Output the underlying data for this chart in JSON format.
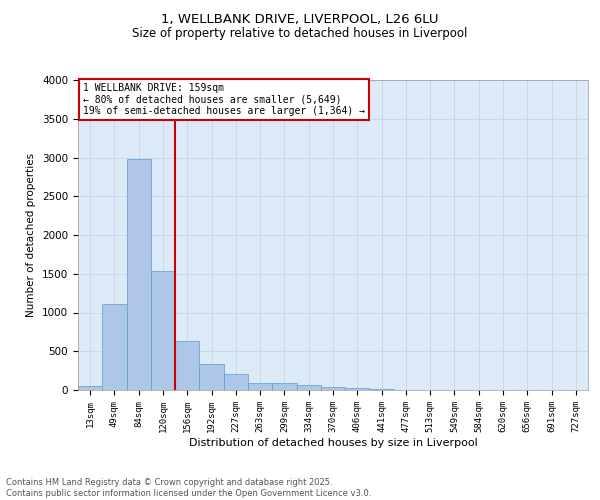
{
  "title_line1": "1, WELLBANK DRIVE, LIVERPOOL, L26 6LU",
  "title_line2": "Size of property relative to detached houses in Liverpool",
  "xlabel": "Distribution of detached houses by size in Liverpool",
  "ylabel": "Number of detached properties",
  "bar_labels": [
    "13sqm",
    "49sqm",
    "84sqm",
    "120sqm",
    "156sqm",
    "192sqm",
    "227sqm",
    "263sqm",
    "299sqm",
    "334sqm",
    "370sqm",
    "406sqm",
    "441sqm",
    "477sqm",
    "513sqm",
    "549sqm",
    "584sqm",
    "620sqm",
    "656sqm",
    "691sqm",
    "727sqm"
  ],
  "bar_values": [
    55,
    1110,
    2980,
    1530,
    635,
    340,
    205,
    95,
    90,
    60,
    45,
    25,
    10,
    2,
    0,
    0,
    0,
    0,
    0,
    0,
    0
  ],
  "bar_color": "#aec6e8",
  "bar_edge_color": "#5b9bd5",
  "vline_color": "#cc0000",
  "ylim": [
    0,
    4000
  ],
  "yticks": [
    0,
    500,
    1000,
    1500,
    2000,
    2500,
    3000,
    3500,
    4000
  ],
  "annotation_text": "1 WELLBANK DRIVE: 159sqm\n← 80% of detached houses are smaller (5,649)\n19% of semi-detached houses are larger (1,364) →",
  "annotation_box_color": "#cc0000",
  "grid_color": "#c8d8e8",
  "background_color": "#ddeaf7",
  "footer_line1": "Contains HM Land Registry data © Crown copyright and database right 2025.",
  "footer_line2": "Contains public sector information licensed under the Open Government Licence v3.0."
}
